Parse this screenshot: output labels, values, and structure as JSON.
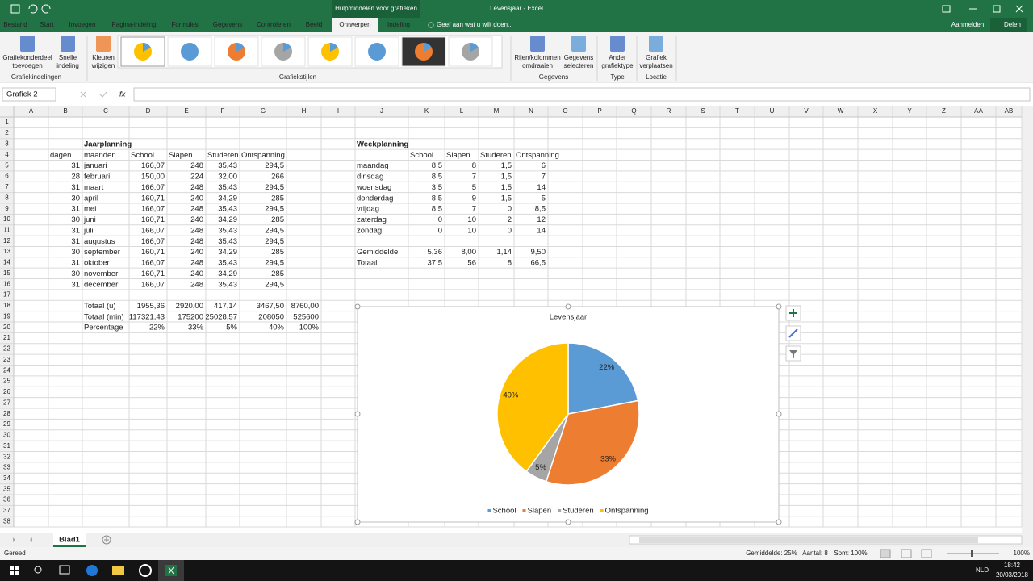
{
  "title_bar": {
    "context_tab": "Hulpmiddelen voor grafieken",
    "title": "Levensjaar - Excel"
  },
  "tabs": [
    "Bestand",
    "Start",
    "Invoegen",
    "Pagina-indeling",
    "Formules",
    "Gegevens",
    "Controleren",
    "Beeld",
    "Ontwerpen",
    "Indeling"
  ],
  "tell_me": "Geef aan wat u wilt doen...",
  "account": "Aanmelden",
  "share": "Delen",
  "ribbon": {
    "buttons": [
      [
        "Grafiekonderdeel",
        "toevoegen"
      ],
      [
        "Snelle",
        "indeling"
      ],
      [
        "Kleuren",
        "wijzigen"
      ],
      [
        "Rijen/kolommen",
        "omdraaien"
      ],
      [
        "Gegevens",
        "selecteren"
      ],
      [
        "Ander",
        "grafiektype"
      ],
      [
        "Grafiek",
        "verplaatsen"
      ]
    ],
    "groups": [
      "Grafiekindelingen",
      "Grafiekstijlen",
      "Gegevens",
      "Type",
      "Locatie"
    ]
  },
  "name_box": "Grafiek 2",
  "formula_label": "fx",
  "columns": [
    "A",
    "B",
    "C",
    "D",
    "E",
    "F",
    "G",
    "H",
    "I",
    "J",
    "K",
    "L",
    "M",
    "N",
    "O",
    "P",
    "Q",
    "R",
    "S",
    "T",
    "U",
    "V",
    "W",
    "X",
    "Y",
    "Z",
    "AA",
    "AB"
  ],
  "rows": [
    1,
    2,
    3,
    4,
    5,
    6,
    7,
    8,
    9,
    10,
    11,
    12,
    13,
    14,
    15,
    16,
    17,
    18,
    19,
    20,
    21,
    22,
    23,
    24,
    25,
    26,
    27,
    28,
    29,
    30,
    31,
    32,
    33,
    34,
    35,
    36,
    37,
    38
  ],
  "tables": [
    {
      "rows": [
        [
          null,
          "Jaarplanning",
          null,
          null,
          null,
          null,
          null
        ],
        [
          "dagen",
          "maanden",
          "School",
          "Slapen",
          "Studeren",
          "Ontspanning",
          null
        ],
        [
          "31",
          "januari",
          "166,07",
          "248",
          "35,43",
          "294,5",
          null
        ],
        [
          "28",
          "februari",
          "150,00",
          "224",
          "32,00",
          "266",
          null
        ],
        [
          "31",
          "maart",
          "166,07",
          "248",
          "35,43",
          "294,5",
          null
        ],
        [
          "30",
          "april",
          "160,71",
          "240",
          "34,29",
          "285",
          null
        ],
        [
          "31",
          "mei",
          "166,07",
          "248",
          "35,43",
          "294,5",
          null
        ],
        [
          "30",
          "juni",
          "160,71",
          "240",
          "34,29",
          "285",
          null
        ],
        [
          "31",
          "juli",
          "166,07",
          "248",
          "35,43",
          "294,5",
          null
        ],
        [
          "31",
          "augustus",
          "166,07",
          "248",
          "35,43",
          "294,5",
          null
        ],
        [
          "30",
          "september",
          "160,71",
          "240",
          "34,29",
          "285",
          null
        ],
        [
          "31",
          "oktober",
          "166,07",
          "248",
          "35,43",
          "294,5",
          null
        ],
        [
          "30",
          "november",
          "160,71",
          "240",
          "34,29",
          "285",
          null
        ],
        [
          "31",
          "december",
          "166,07",
          "248",
          "35,43",
          "294,5",
          null
        ],
        [
          null,
          null,
          null,
          null,
          null,
          null,
          null
        ],
        [
          null,
          "Totaal (u)",
          "1955,36",
          "2920,00",
          "417,14",
          "3467,50",
          "8760,00"
        ],
        [
          null,
          "Totaal (min)",
          "117321,43",
          "175200",
          "25028,57",
          "208050",
          "525600"
        ],
        [
          null,
          "Percentage",
          "22%",
          "33%",
          "5%",
          "40%",
          "100%"
        ]
      ]
    },
    {
      "rows": [
        [
          "Weekplanning",
          null,
          null,
          null,
          null
        ],
        [
          null,
          "School",
          "Slapen",
          "Studeren",
          "Ontspanning"
        ],
        [
          "maandag",
          "8,5",
          "8",
          "1,5",
          "6"
        ],
        [
          "dinsdag",
          "8,5",
          "7",
          "1,5",
          "7"
        ],
        [
          "woensdag",
          "3,5",
          "5",
          "1,5",
          "14"
        ],
        [
          "donderdag",
          "8,5",
          "9",
          "1,5",
          "5"
        ],
        [
          "vrijdag",
          "8,5",
          "7",
          "0",
          "8,5"
        ],
        [
          "zaterdag",
          "0",
          "10",
          "2",
          "12"
        ],
        [
          "zondag",
          "0",
          "10",
          "0",
          "14"
        ],
        [
          null,
          null,
          null,
          null,
          null
        ],
        [
          "Gemiddelde",
          "5,36",
          "8,00",
          "1,14",
          "9,50"
        ],
        [
          "Totaal",
          "37,5",
          "56",
          "8",
          "66,5"
        ]
      ]
    }
  ],
  "chart_data": {
    "type": "pie",
    "title": "Levensjaar",
    "categories": [
      "School",
      "Slapen",
      "Studeren",
      "Ontspanning"
    ],
    "values": [
      22,
      33,
      5,
      40
    ],
    "value_labels": [
      "22%",
      "33%",
      "5%",
      "40%"
    ],
    "colors": [
      "#5b9bd5",
      "#ed7d31",
      "#a5a5a5",
      "#ffc000"
    ],
    "legend": "bottom"
  },
  "sheet_tab": "Blad1",
  "status": {
    "ready": "Gereed",
    "average": "Gemiddelde: 25%",
    "count": "Aantal: 8",
    "sum": "Som: 100%",
    "zoom": "100%"
  },
  "taskbar": {
    "language": "NLD",
    "time": "18:42",
    "date": "20/03/2018"
  }
}
